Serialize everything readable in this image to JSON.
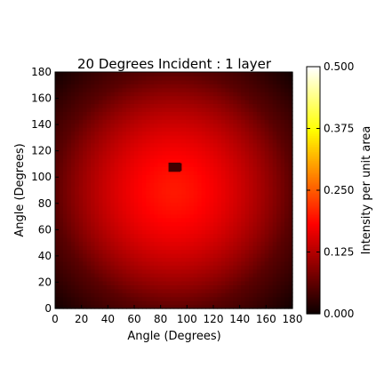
{
  "chart_data": {
    "type": "heatmap",
    "title": "20 Degrees Incident : 1 layer",
    "xlabel": "Angle (Degrees)",
    "ylabel": "Angle (Degrees)",
    "xlim": [
      0,
      180
    ],
    "ylim": [
      0,
      180
    ],
    "xticks": [
      "0",
      "20",
      "40",
      "60",
      "80",
      "100",
      "120",
      "140",
      "160",
      "180"
    ],
    "yticks": [
      "0",
      "20",
      "40",
      "60",
      "80",
      "100",
      "120",
      "140",
      "160",
      "180"
    ],
    "colormap": "hot",
    "colorbar": {
      "label": "Intensity per unit area",
      "range": [
        0.0,
        0.5
      ],
      "ticks": [
        "0.000",
        "0.125",
        "0.250",
        "0.375",
        "0.500"
      ]
    },
    "intensity_model": {
      "center": [
        90,
        90
      ],
      "peak": 0.2,
      "edge_at_radius_90": 0.06,
      "corner": 0.005
    },
    "dark_spot": {
      "x_range": [
        86,
        95
      ],
      "y_range": [
        104,
        111
      ],
      "value": 0.04
    },
    "grid": false,
    "legend": "none"
  }
}
